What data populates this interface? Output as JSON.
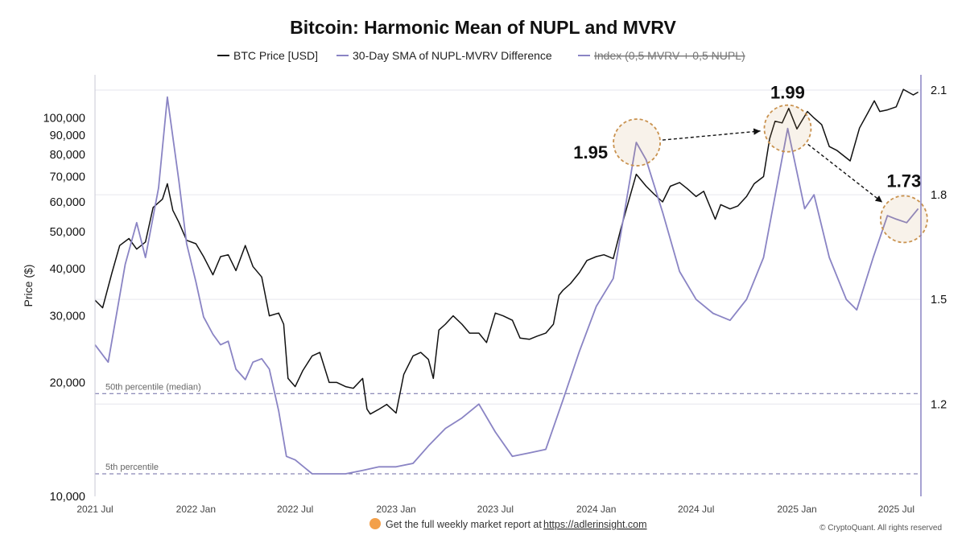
{
  "colors": {
    "btc": "#111111",
    "sma": "#8a84c4",
    "index": "#8a84c4",
    "percentile": "#6d6aa3",
    "grid": "#e6e6ee",
    "highlight": "#c9924f",
    "axis_text": "#333333",
    "right_axis": "#8a84c4",
    "footer_badge": "#f3a04a"
  },
  "footer": {
    "report_text": "Get the full weekly market report at",
    "report_link": "https://adlerinsight.com",
    "copyright": "© CryptoQuant. All rights reserved",
    "badge_icon": "orange-circle-icon"
  },
  "chart_data": {
    "type": "line",
    "title": "Bitcoin: Harmonic Mean of NUPL and MVRV",
    "legend_position": "top-center",
    "legend": [
      {
        "label": "BTC Price [USD]",
        "style": "solid",
        "color": "#111111",
        "strikethrough": false
      },
      {
        "label": "30-Day SMA of NUPL-MVRV Difference",
        "style": "solid",
        "color": "#8a84c4",
        "strikethrough": false
      },
      {
        "label": "Index (0,5 MVRV + 0,5 NUPL)",
        "style": "solid",
        "color": "#8a84c4",
        "strikethrough": true
      }
    ],
    "ylabel": "Price ($)",
    "ylabel_right": "",
    "y_scale": "log",
    "ylim": [
      10000,
      130000
    ],
    "y_ticks": [
      10000,
      20000,
      30000,
      40000,
      50000,
      60000,
      70000,
      80000,
      90000,
      100000
    ],
    "y_tick_labels": [
      "10,000",
      "20,000",
      "30,000",
      "40,000",
      "50,000",
      "60,000",
      "70,000",
      "80,000",
      "90,000",
      "100,000"
    ],
    "y2lim": [
      1.0,
      2.1
    ],
    "y2_ticks": [
      1.2,
      1.5,
      1.8,
      2.1
    ],
    "y2_tick_labels": [
      "1.2",
      "1.5",
      "1.8",
      "2.1"
    ],
    "xlim": [
      "2021-07-01",
      "2025-08-15"
    ],
    "x_ticks": [
      "2021-07-01",
      "2022-01-01",
      "2022-07-01",
      "2023-01-01",
      "2023-07-01",
      "2024-01-01",
      "2024-07-01",
      "2025-01-01",
      "2025-07-01"
    ],
    "x_tick_labels": [
      "2021 Jul",
      "2022 Jan",
      "2022 Jul",
      "2023 Jan",
      "2023 Jul",
      "2024 Jan",
      "2024 Jul",
      "2025 Jan",
      "2025 Jul"
    ],
    "grid": {
      "horizontal": true,
      "vertical": false
    },
    "reference_lines": [
      {
        "label": "50th percentile (median)",
        "value": 1.23,
        "style": "dashed"
      },
      {
        "label": "5th percentile",
        "value": 1.0,
        "style": "dashed"
      }
    ],
    "annotations": [
      {
        "label": "1.95",
        "date": "2024-03-15",
        "value": 1.95
      },
      {
        "label": "1.99",
        "date": "2024-12-15",
        "value": 1.99
      },
      {
        "label": "1.73",
        "date": "2025-07-15",
        "value": 1.73
      }
    ],
    "series": [
      {
        "name": "BTC Price [USD]",
        "axis": "left",
        "x": [
          "2021-07-01",
          "2021-07-15",
          "2021-08-01",
          "2021-08-15",
          "2021-09-01",
          "2021-09-15",
          "2021-10-01",
          "2021-10-15",
          "2021-11-01",
          "2021-11-10",
          "2021-11-20",
          "2021-12-01",
          "2021-12-15",
          "2022-01-01",
          "2022-01-15",
          "2022-02-01",
          "2022-02-15",
          "2022-03-01",
          "2022-03-15",
          "2022-04-01",
          "2022-04-15",
          "2022-05-01",
          "2022-05-15",
          "2022-06-01",
          "2022-06-10",
          "2022-06-18",
          "2022-07-01",
          "2022-07-15",
          "2022-08-01",
          "2022-08-15",
          "2022-09-01",
          "2022-09-15",
          "2022-10-01",
          "2022-10-15",
          "2022-11-01",
          "2022-11-09",
          "2022-11-15",
          "2022-12-01",
          "2022-12-15",
          "2023-01-01",
          "2023-01-15",
          "2023-02-01",
          "2023-02-15",
          "2023-03-01",
          "2023-03-10",
          "2023-03-20",
          "2023-04-01",
          "2023-04-15",
          "2023-05-01",
          "2023-05-15",
          "2023-06-01",
          "2023-06-15",
          "2023-07-01",
          "2023-07-15",
          "2023-08-01",
          "2023-08-15",
          "2023-09-01",
          "2023-09-15",
          "2023-10-01",
          "2023-10-15",
          "2023-10-25",
          "2023-11-01",
          "2023-11-15",
          "2023-12-01",
          "2023-12-15",
          "2024-01-01",
          "2024-01-15",
          "2024-02-01",
          "2024-02-15",
          "2024-03-01",
          "2024-03-14",
          "2024-04-01",
          "2024-04-15",
          "2024-05-01",
          "2024-05-15",
          "2024-06-01",
          "2024-06-15",
          "2024-07-01",
          "2024-07-15",
          "2024-08-05",
          "2024-08-15",
          "2024-09-01",
          "2024-09-15",
          "2024-10-01",
          "2024-10-15",
          "2024-11-01",
          "2024-11-12",
          "2024-11-22",
          "2024-12-05",
          "2024-12-17",
          "2025-01-01",
          "2025-01-20",
          "2025-02-01",
          "2025-02-15",
          "2025-03-01",
          "2025-03-15",
          "2025-04-08",
          "2025-04-25",
          "2025-05-10",
          "2025-05-22",
          "2025-06-01",
          "2025-06-15",
          "2025-07-01",
          "2025-07-14",
          "2025-08-01",
          "2025-08-10"
        ],
        "values": [
          33000,
          31500,
          39000,
          46000,
          48000,
          45000,
          47000,
          58000,
          61000,
          67000,
          57000,
          53000,
          47500,
          46500,
          43000,
          38500,
          43000,
          43500,
          39500,
          46000,
          40500,
          38000,
          30000,
          30500,
          28500,
          20500,
          19500,
          21500,
          23500,
          24000,
          20000,
          20000,
          19500,
          19300,
          20500,
          17000,
          16500,
          17000,
          17500,
          16600,
          21000,
          23500,
          24000,
          23000,
          20500,
          27500,
          28500,
          30000,
          28500,
          27000,
          27000,
          25500,
          30500,
          30000,
          29200,
          26200,
          26000,
          26500,
          27000,
          28500,
          34000,
          35000,
          36500,
          39000,
          42000,
          43000,
          43500,
          42500,
          51000,
          61000,
          71000,
          66000,
          63000,
          60000,
          66000,
          67500,
          65000,
          62000,
          64000,
          54000,
          59000,
          57500,
          58500,
          62000,
          67000,
          70000,
          88000,
          98000,
          97000,
          106000,
          93500,
          104000,
          100000,
          96000,
          84000,
          82000,
          77000,
          94000,
          103000,
          111000,
          104000,
          105000,
          107000,
          119000,
          115000,
          117000
        ]
      },
      {
        "name": "30-Day SMA of NUPL-MVRV Difference",
        "axis": "right",
        "x": [
          "2021-07-01",
          "2021-07-25",
          "2021-08-25",
          "2021-09-15",
          "2021-10-01",
          "2021-10-25",
          "2021-11-10",
          "2021-12-01",
          "2021-12-15",
          "2022-01-01",
          "2022-01-15",
          "2022-02-01",
          "2022-02-15",
          "2022-03-01",
          "2022-03-15",
          "2022-04-01",
          "2022-04-15",
          "2022-05-01",
          "2022-05-15",
          "2022-06-01",
          "2022-06-15",
          "2022-07-01",
          "2022-08-01",
          "2022-09-01",
          "2022-10-01",
          "2022-11-01",
          "2022-12-01",
          "2023-01-01",
          "2023-02-01",
          "2023-03-01",
          "2023-04-01",
          "2023-05-01",
          "2023-06-01",
          "2023-07-01",
          "2023-08-01",
          "2023-09-01",
          "2023-10-01",
          "2023-11-01",
          "2023-12-01",
          "2024-01-01",
          "2024-02-01",
          "2024-03-14",
          "2024-04-01",
          "2024-05-01",
          "2024-06-01",
          "2024-07-01",
          "2024-08-01",
          "2024-09-01",
          "2024-10-01",
          "2024-11-01",
          "2024-12-15",
          "2025-01-15",
          "2025-02-01",
          "2025-03-01",
          "2025-04-01",
          "2025-04-20",
          "2025-05-20",
          "2025-06-15",
          "2025-07-01",
          "2025-07-20",
          "2025-08-10"
        ],
        "values": [
          1.37,
          1.32,
          1.6,
          1.72,
          1.62,
          1.82,
          2.08,
          1.84,
          1.66,
          1.55,
          1.45,
          1.4,
          1.37,
          1.38,
          1.3,
          1.27,
          1.32,
          1.33,
          1.3,
          1.18,
          1.05,
          1.04,
          1.0,
          1.0,
          1.0,
          1.01,
          1.02,
          1.02,
          1.03,
          1.08,
          1.13,
          1.16,
          1.2,
          1.12,
          1.05,
          1.06,
          1.07,
          1.21,
          1.35,
          1.48,
          1.56,
          1.95,
          1.9,
          1.75,
          1.58,
          1.5,
          1.46,
          1.44,
          1.5,
          1.62,
          1.99,
          1.76,
          1.8,
          1.62,
          1.5,
          1.47,
          1.62,
          1.74,
          1.73,
          1.72,
          1.76
        ]
      }
    ]
  }
}
